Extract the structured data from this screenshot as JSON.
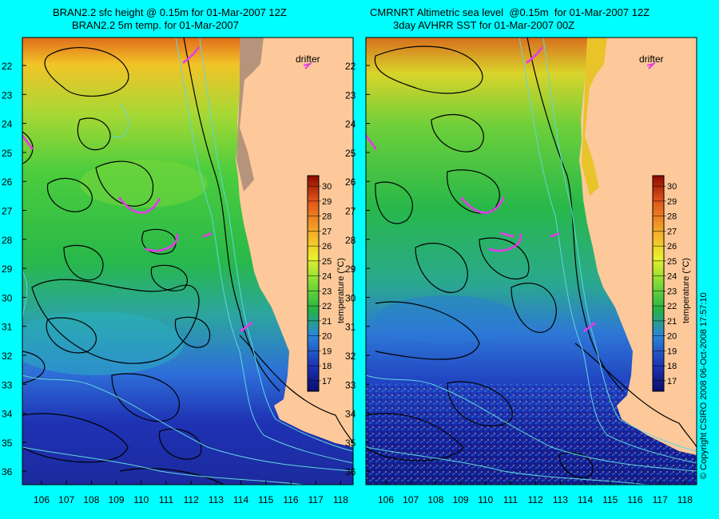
{
  "left_panel": {
    "title_line1": "BRAN2.2 sfc height @ 0.15m for 01-Mar-2007 12Z",
    "title_line2": "BRAN2.2 5m temp. for 01-Mar-2007",
    "drifter_label": "drifter"
  },
  "right_panel": {
    "title_line1": "CMRNRT Altimetric sea level  @0.15m  for 01-Mar-2007 12Z",
    "title_line2": "3day AVHRR SST for 01-Mar-2007 00Z",
    "drifter_label": "drifter"
  },
  "colorbar": {
    "label": "temperature (°C)",
    "ticks": [
      "30",
      "29",
      "28",
      "27",
      "26",
      "25",
      "24",
      "23",
      "22",
      "21",
      "20",
      "19",
      "18",
      "17"
    ],
    "range": [
      16.3,
      30.7
    ]
  },
  "axes": {
    "lat_ticks": [
      "22",
      "23",
      "24",
      "25",
      "26",
      "27",
      "28",
      "29",
      "30",
      "31",
      "32",
      "33",
      "34",
      "35",
      "36"
    ],
    "lon_ticks": [
      "106",
      "107",
      "108",
      "109",
      "110",
      "111",
      "112",
      "113",
      "114",
      "115",
      "116",
      "117",
      "118"
    ]
  },
  "credit": "© Copyright CSIRO 2008   06-Oct-2008 17:57:10",
  "colors": {
    "background": "#00ffff",
    "land": "#fdc99a",
    "drifter": "#e23de6",
    "contour": "#000000",
    "isobath": "#5fd7dc"
  }
}
